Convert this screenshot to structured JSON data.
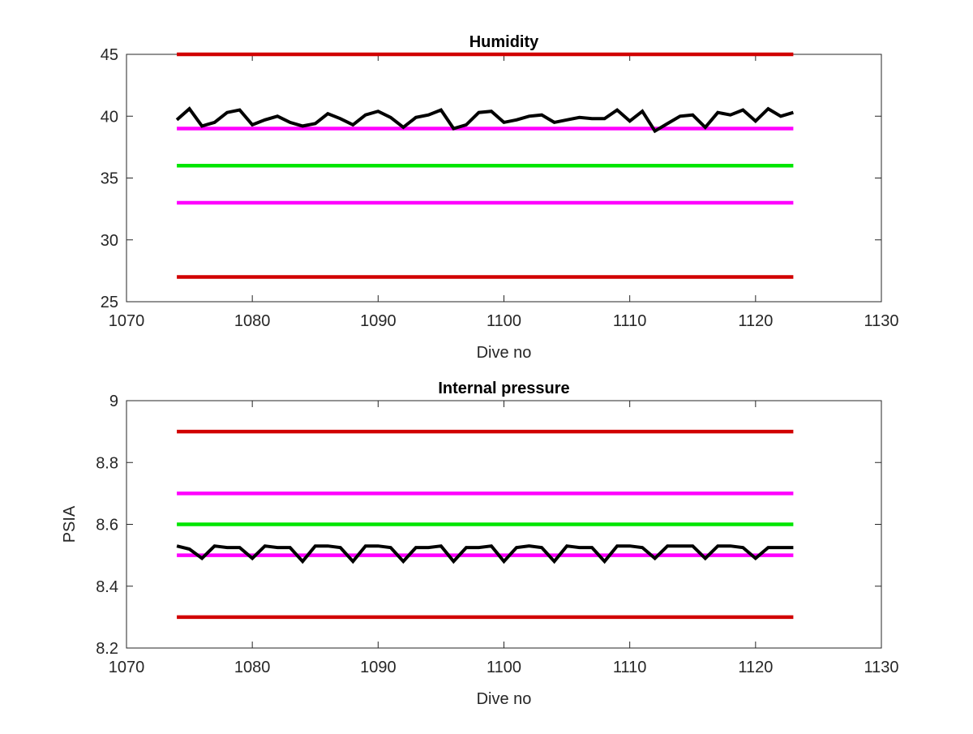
{
  "chart_data": [
    {
      "type": "line",
      "title": "Humidity",
      "xlabel": "Dive no",
      "ylabel": "",
      "xlim": [
        1070,
        1130
      ],
      "ylim": [
        25,
        45
      ],
      "xticks": [
        "1070",
        "1080",
        "1090",
        "1100",
        "1110",
        "1120",
        "1130"
      ],
      "yticks": [
        "25",
        "30",
        "35",
        "40",
        "45"
      ],
      "x": [
        1074,
        1075,
        1076,
        1077,
        1078,
        1079,
        1080,
        1081,
        1082,
        1083,
        1084,
        1085,
        1086,
        1087,
        1088,
        1089,
        1090,
        1091,
        1092,
        1093,
        1094,
        1095,
        1096,
        1097,
        1098,
        1099,
        1100,
        1101,
        1102,
        1103,
        1104,
        1105,
        1106,
        1107,
        1108,
        1109,
        1110,
        1111,
        1112,
        1113,
        1114,
        1115,
        1116,
        1117,
        1118,
        1119,
        1120,
        1121,
        1122,
        1123
      ],
      "series": [
        {
          "color": "#000000",
          "values": [
            39.7,
            40.6,
            39.2,
            39.5,
            40.3,
            40.5,
            39.3,
            39.7,
            40.0,
            39.5,
            39.2,
            39.4,
            40.2,
            39.8,
            39.3,
            40.1,
            40.4,
            39.9,
            39.1,
            39.9,
            40.1,
            40.5,
            39.0,
            39.3,
            40.3,
            40.4,
            39.5,
            39.7,
            40.0,
            40.1,
            39.5,
            39.7,
            39.9,
            39.8,
            39.8,
            40.5,
            39.6,
            40.4,
            38.8,
            39.4,
            40.0,
            40.1,
            39.1,
            40.3,
            40.1,
            40.5,
            39.6,
            40.6,
            40.0,
            40.3
          ]
        },
        {
          "color": "#d10000",
          "values": "const:45"
        },
        {
          "color": "#ff00ff",
          "values": "const:39"
        },
        {
          "color": "#00e600",
          "values": "const:36"
        },
        {
          "color": "#ff00ff",
          "values": "const:33"
        },
        {
          "color": "#d10000",
          "values": "const:27"
        }
      ],
      "grid": false
    },
    {
      "type": "line",
      "title": "Internal pressure",
      "xlabel": "Dive no",
      "ylabel": "PSIA",
      "xlim": [
        1070,
        1130
      ],
      "ylim": [
        8.2,
        9.0
      ],
      "xticks": [
        "1070",
        "1080",
        "1090",
        "1100",
        "1110",
        "1120",
        "1130"
      ],
      "yticks": [
        "8.2",
        "8.4",
        "8.6",
        "8.8",
        "9"
      ],
      "x": [
        1074,
        1075,
        1076,
        1077,
        1078,
        1079,
        1080,
        1081,
        1082,
        1083,
        1084,
        1085,
        1086,
        1087,
        1088,
        1089,
        1090,
        1091,
        1092,
        1093,
        1094,
        1095,
        1096,
        1097,
        1098,
        1099,
        1100,
        1101,
        1102,
        1103,
        1104,
        1105,
        1106,
        1107,
        1108,
        1109,
        1110,
        1111,
        1112,
        1113,
        1114,
        1115,
        1116,
        1117,
        1118,
        1119,
        1120,
        1121,
        1122,
        1123
      ],
      "series": [
        {
          "color": "#000000",
          "values": [
            8.53,
            8.52,
            8.49,
            8.53,
            8.525,
            8.525,
            8.49,
            8.53,
            8.525,
            8.525,
            8.48,
            8.53,
            8.53,
            8.525,
            8.48,
            8.53,
            8.53,
            8.525,
            8.48,
            8.525,
            8.525,
            8.53,
            8.48,
            8.525,
            8.525,
            8.53,
            8.48,
            8.525,
            8.53,
            8.525,
            8.48,
            8.53,
            8.525,
            8.525,
            8.48,
            8.53,
            8.53,
            8.525,
            8.49,
            8.53,
            8.53,
            8.53,
            8.49,
            8.53,
            8.53,
            8.525,
            8.49,
            8.525,
            8.525,
            8.525
          ]
        },
        {
          "color": "#d10000",
          "values": "const:8.9"
        },
        {
          "color": "#ff00ff",
          "values": "const:8.7"
        },
        {
          "color": "#00e600",
          "values": "const:8.6"
        },
        {
          "color": "#ff00ff",
          "values": "const:8.5"
        },
        {
          "color": "#d10000",
          "values": "const:8.3"
        }
      ],
      "grid": false
    }
  ]
}
